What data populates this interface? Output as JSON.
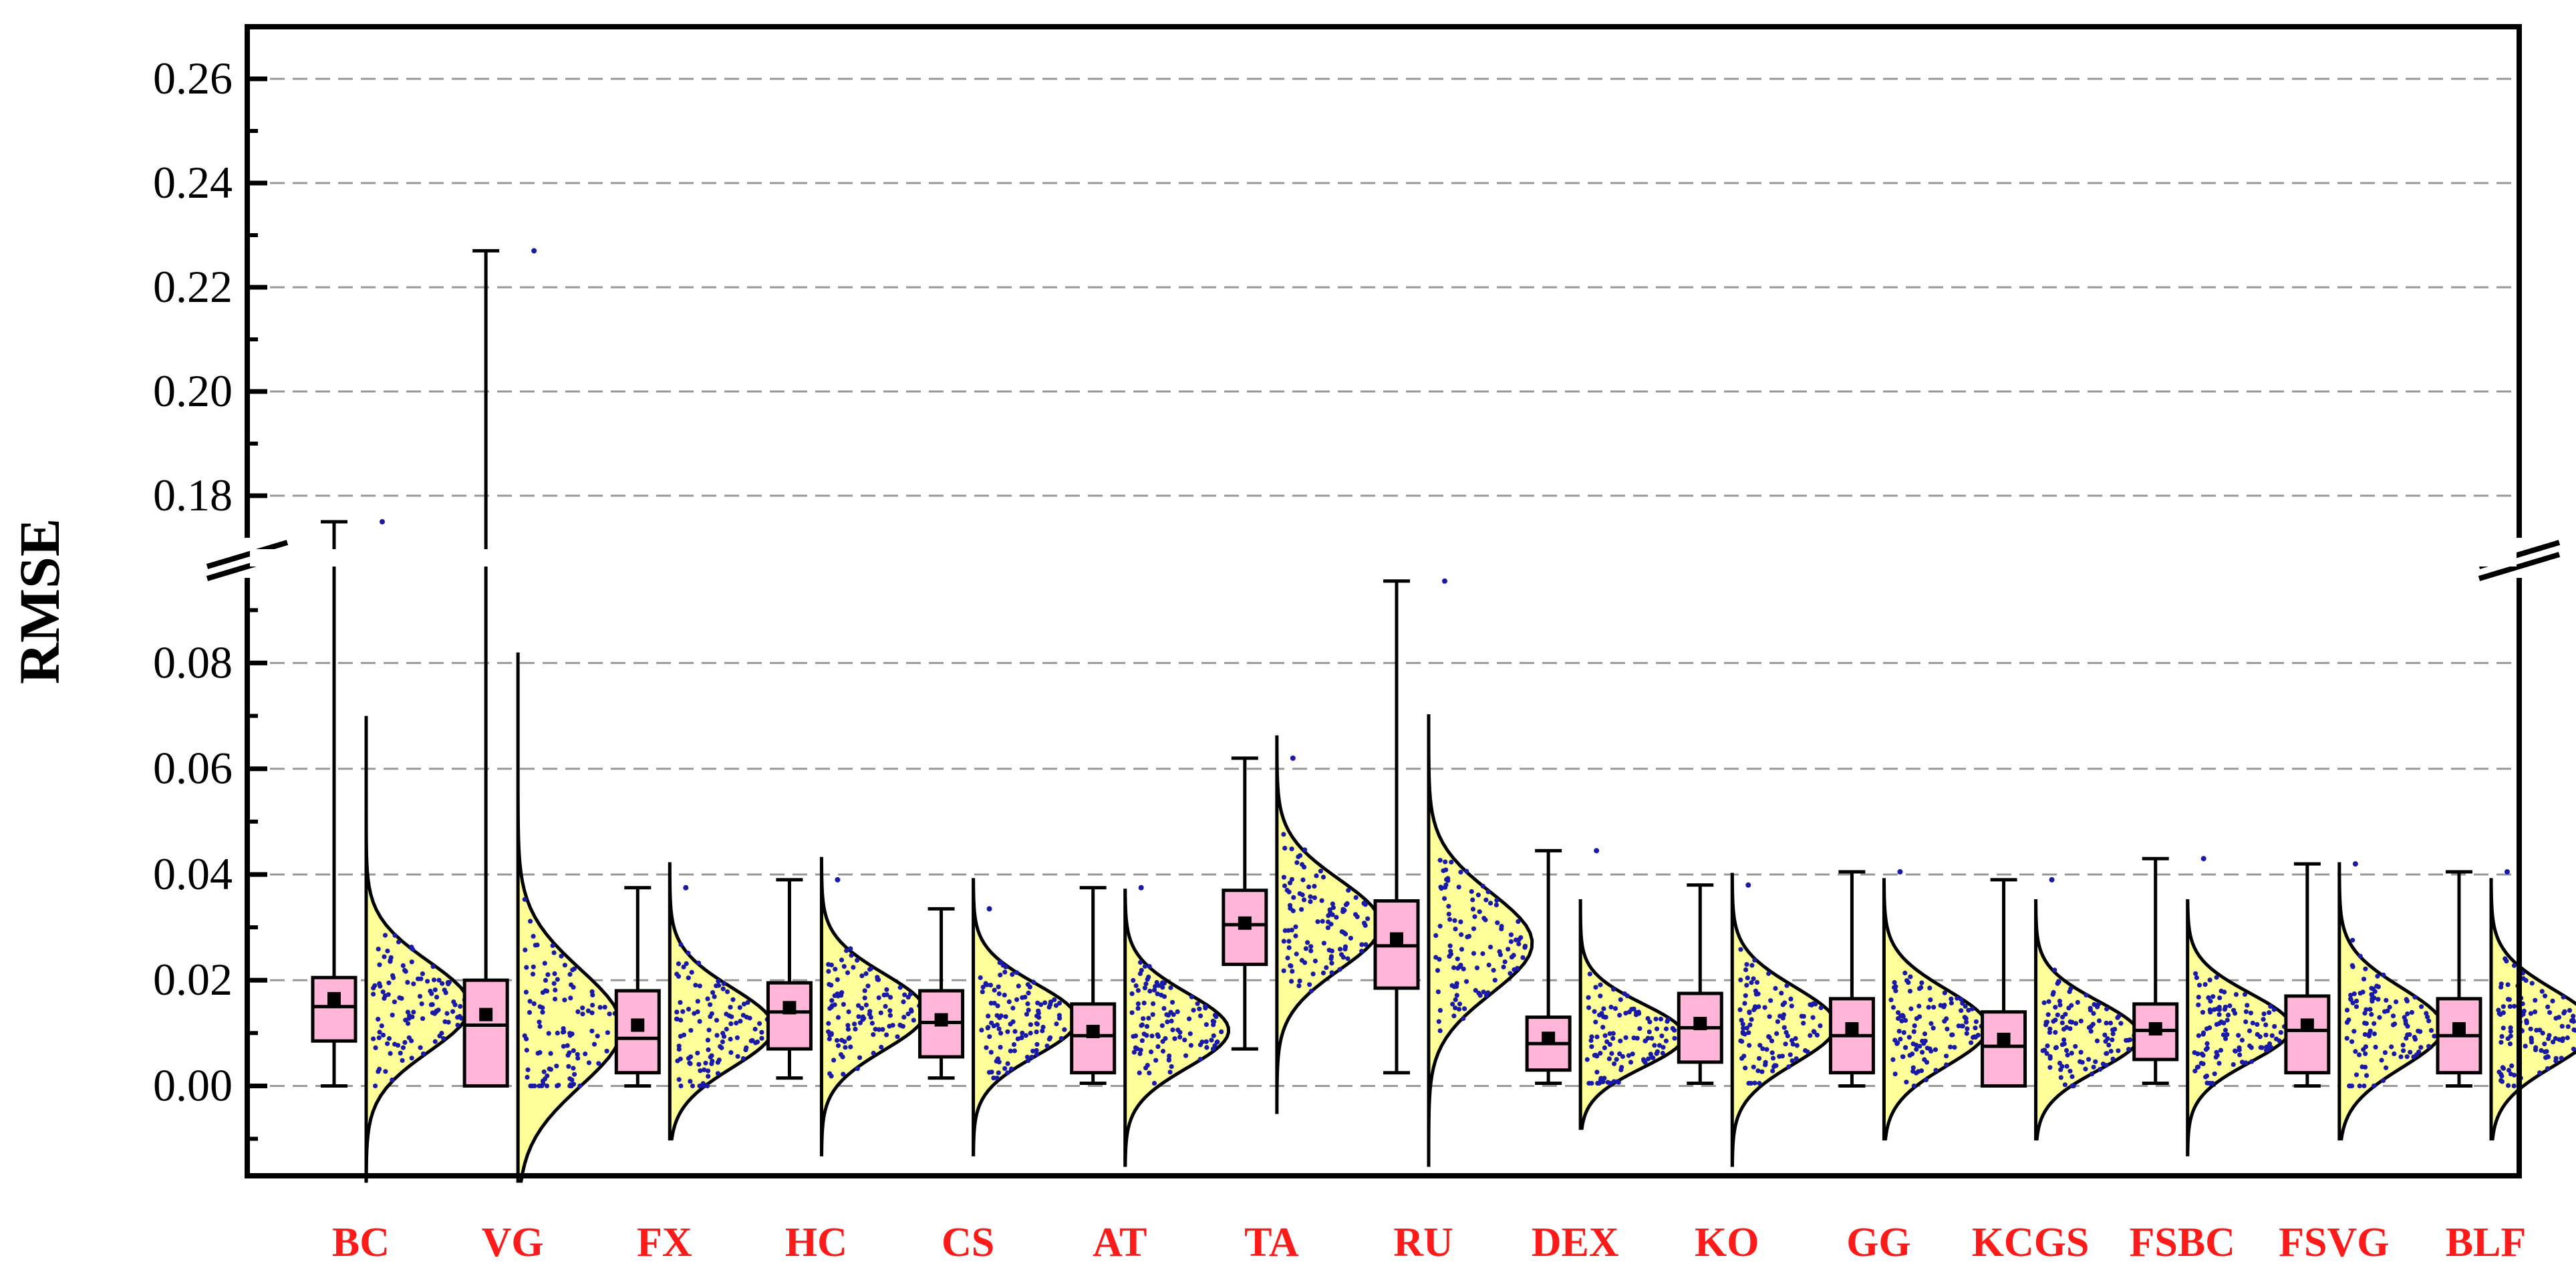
{
  "chart_data": {
    "type": "raincloud",
    "title": "",
    "xlabel": "",
    "ylabel": "RMSE",
    "axis_break": [
      0.098,
      0.17
    ],
    "ylim_lower": [
      -0.017,
      0.098
    ],
    "ylim_upper": [
      0.17,
      0.27
    ],
    "yticks_lower": [
      "0.00",
      "0.02",
      "0.04",
      "0.06",
      "0.08"
    ],
    "yticks_upper": [
      "0.18",
      "0.20",
      "0.22",
      "0.24",
      "0.26"
    ],
    "grid": true,
    "colors": {
      "box_fill": "#ffb6d9",
      "density_fill": "#ffff99",
      "points": "#1a1aa8",
      "category_text": "#ff1a1a",
      "grid": "#999999"
    },
    "categories": [
      "BC",
      "VG",
      "FX",
      "HC",
      "CS",
      "AT",
      "TA",
      "RU",
      "DEX",
      "KO",
      "GG",
      "KCGS",
      "FSBC",
      "FSVG",
      "BLF"
    ],
    "series": [
      {
        "category": "BC",
        "min": 0.0,
        "q1": 0.0085,
        "median": 0.015,
        "q3": 0.0205,
        "max": 0.175,
        "mean": 0.0165,
        "density_peak": 0.015,
        "density_low": -0.018,
        "density_high": 0.07,
        "density_spread": 0.0085
      },
      {
        "category": "VG",
        "min": 0.0,
        "q1": 0.0,
        "median": 0.0115,
        "q3": 0.02,
        "max": 0.227,
        "mean": 0.0135,
        "density_peak": 0.011,
        "density_low": -0.018,
        "density_high": 0.082,
        "density_spread": 0.011
      },
      {
        "category": "FX",
        "min": 0.0,
        "q1": 0.0025,
        "median": 0.009,
        "q3": 0.018,
        "max": 0.0375,
        "mean": 0.0115,
        "density_peak": 0.011,
        "density_low": -0.01,
        "density_high": 0.042,
        "density_spread": 0.0075
      },
      {
        "category": "HC",
        "min": 0.0015,
        "q1": 0.007,
        "median": 0.014,
        "q3": 0.0195,
        "max": 0.039,
        "mean": 0.0148,
        "density_peak": 0.014,
        "density_low": -0.013,
        "density_high": 0.043,
        "density_spread": 0.0072
      },
      {
        "category": "CS",
        "min": 0.0015,
        "q1": 0.0055,
        "median": 0.012,
        "q3": 0.018,
        "max": 0.0335,
        "mean": 0.0125,
        "density_peak": 0.0125,
        "density_low": -0.013,
        "density_high": 0.039,
        "density_spread": 0.0068
      },
      {
        "category": "AT",
        "min": 0.0005,
        "q1": 0.0025,
        "median": 0.0095,
        "q3": 0.0155,
        "max": 0.0375,
        "mean": 0.0103,
        "density_peak": 0.0105,
        "density_low": -0.015,
        "density_high": 0.037,
        "density_spread": 0.007
      },
      {
        "category": "TA",
        "min": 0.007,
        "q1": 0.023,
        "median": 0.0305,
        "q3": 0.037,
        "max": 0.062,
        "mean": 0.0308,
        "density_peak": 0.0305,
        "density_low": -0.005,
        "density_high": 0.066,
        "density_spread": 0.0085
      },
      {
        "category": "RU",
        "min": 0.0025,
        "q1": 0.0185,
        "median": 0.0265,
        "q3": 0.035,
        "max": 0.0955,
        "mean": 0.0278,
        "density_peak": 0.027,
        "density_low": -0.015,
        "density_high": 0.07,
        "density_spread": 0.0095
      },
      {
        "category": "DEX",
        "min": 0.0005,
        "q1": 0.003,
        "median": 0.008,
        "q3": 0.013,
        "max": 0.0445,
        "mean": 0.009,
        "density_peak": 0.0095,
        "density_low": -0.008,
        "density_high": 0.035,
        "density_spread": 0.006
      },
      {
        "category": "KO",
        "min": 0.0005,
        "q1": 0.0045,
        "median": 0.011,
        "q3": 0.0175,
        "max": 0.038,
        "mean": 0.0118,
        "density_peak": 0.0115,
        "density_low": -0.015,
        "density_high": 0.04,
        "density_spread": 0.0072
      },
      {
        "category": "GG",
        "min": 0.0,
        "q1": 0.0025,
        "median": 0.0095,
        "q3": 0.0165,
        "max": 0.0405,
        "mean": 0.0108,
        "density_peak": 0.011,
        "density_low": -0.01,
        "density_high": 0.039,
        "density_spread": 0.0072
      },
      {
        "category": "KCGS",
        "min": 0.0,
        "q1": 0.0,
        "median": 0.0075,
        "q3": 0.014,
        "max": 0.039,
        "mean": 0.0088,
        "density_peak": 0.0095,
        "density_low": -0.01,
        "density_high": 0.035,
        "density_spread": 0.0065
      },
      {
        "category": "FSBC",
        "min": 0.0005,
        "q1": 0.005,
        "median": 0.0105,
        "q3": 0.0155,
        "max": 0.043,
        "mean": 0.0108,
        "density_peak": 0.011,
        "density_low": -0.013,
        "density_high": 0.035,
        "density_spread": 0.0065
      },
      {
        "category": "FSVG",
        "min": 0.0,
        "q1": 0.0025,
        "median": 0.0105,
        "q3": 0.017,
        "max": 0.042,
        "mean": 0.0115,
        "density_peak": 0.011,
        "density_low": -0.01,
        "density_high": 0.042,
        "density_spread": 0.0075
      },
      {
        "category": "BLF",
        "min": 0.0,
        "q1": 0.0025,
        "median": 0.0095,
        "q3": 0.0165,
        "max": 0.0405,
        "mean": 0.0108,
        "density_peak": 0.011,
        "density_low": -0.01,
        "density_high": 0.039,
        "density_spread": 0.0072
      }
    ]
  }
}
